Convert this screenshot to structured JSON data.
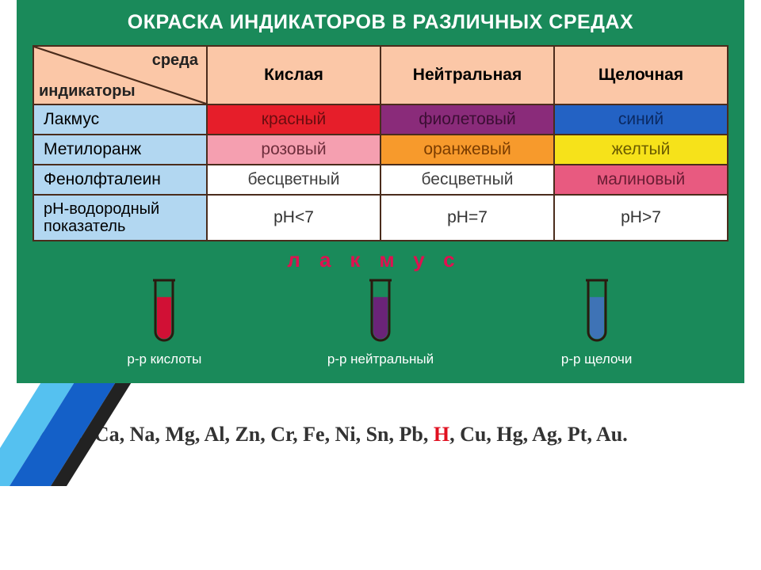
{
  "title": "ОКРАСКА ИНДИКАТОРОВ В РАЗЛИЧНЫХ СРЕДАХ",
  "header": {
    "diag_top": "среда",
    "diag_bottom": "индикаторы",
    "env1": "Кислая",
    "env2": "Нейтральная",
    "env3": "Щелочная"
  },
  "rows": [
    {
      "name": "Лакмус",
      "c1": {
        "label": "красный",
        "bg": "#e61e2a",
        "fg": "#6a0d10"
      },
      "c2": {
        "label": "фиолетовый",
        "bg": "#8a2b7a",
        "fg": "#3b0e33"
      },
      "c3": {
        "label": "синий",
        "bg": "#2362c4",
        "fg": "#0b2a63"
      }
    },
    {
      "name": "Метилоранж",
      "c1": {
        "label": "розовый",
        "bg": "#f59fb0",
        "fg": "#6e2e3c"
      },
      "c2": {
        "label": "оранжевый",
        "bg": "#f79a2c",
        "fg": "#7a3c00"
      },
      "c3": {
        "label": "желтый",
        "bg": "#f6e21a",
        "fg": "#6a5b00"
      }
    },
    {
      "name": "Фенолфталеин",
      "c1": {
        "label": "бесцветный",
        "bg": "#ffffff",
        "fg": "#404040"
      },
      "c2": {
        "label": "бесцветный",
        "bg": "#ffffff",
        "fg": "#404040"
      },
      "c3": {
        "label": "малиновый",
        "bg": "#e85a80",
        "fg": "#6a1d34"
      }
    },
    {
      "name": "рН-водородный показатель",
      "c1": {
        "label": "рН<7",
        "bg": "#ffffff",
        "fg": "#333333"
      },
      "c2": {
        "label": "рН=7",
        "bg": "#ffffff",
        "fg": "#333333"
      },
      "c3": {
        "label": "рН>7",
        "bg": "#ffffff",
        "fg": "#333333"
      }
    }
  ],
  "lakmus_label": "лакмус",
  "tubes": [
    {
      "caption": "р-р кислоты",
      "fill": "#d11035"
    },
    {
      "caption": "р-р нейтральный",
      "fill": "#6a2478"
    },
    {
      "caption": "р-р щелочи",
      "fill": "#3e73b6"
    }
  ],
  "series_pre": "Li, K, Ca, Na, Mg, Al, Zn, Cr, Fe, Ni, Sn, Pb, ",
  "series_h": "H",
  "series_post": ", Cu, Hg, Ag, Pt, Au.",
  "style": {
    "panel_bg": "#1a8a5a",
    "border_color": "#4a2c1c",
    "header_bg": "#fbc7a7",
    "rowhead_bg": "#b2d7f1",
    "title_color": "#ffffff",
    "lakmus_color": "#e01050",
    "tube_outline": "#2a1a0f",
    "tube_width": 22,
    "tube_height": 76
  }
}
